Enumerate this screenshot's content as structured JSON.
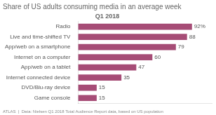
{
  "chart_data": {
    "type": "bar",
    "orientation": "horizontal",
    "title": "Share of US adults consuming media in an average week",
    "subtitle": "Q1 2018",
    "annotations": [
      "ATLAS  |  Data: Nielsen Q1 2018 Total Audience Report data, based on US population"
    ],
    "categories": [
      "Game console",
      "DVD/Blu-ray device",
      "Internet connected device",
      "App/web on a tablet",
      "Internet on a computer",
      "App/web on a smartphone",
      "Live and time-shifted TV",
      "Radio"
    ],
    "values": [
      15,
      15,
      35,
      47,
      60,
      79,
      88,
      92
    ],
    "value_labels": [
      "15",
      "15",
      "35",
      "47",
      "60",
      "79",
      "88",
      "92%"
    ],
    "data_labels": true,
    "color": "#a64c76",
    "xlim": [
      0,
      108
    ],
    "tick_labels": "y",
    "grid": false
  }
}
